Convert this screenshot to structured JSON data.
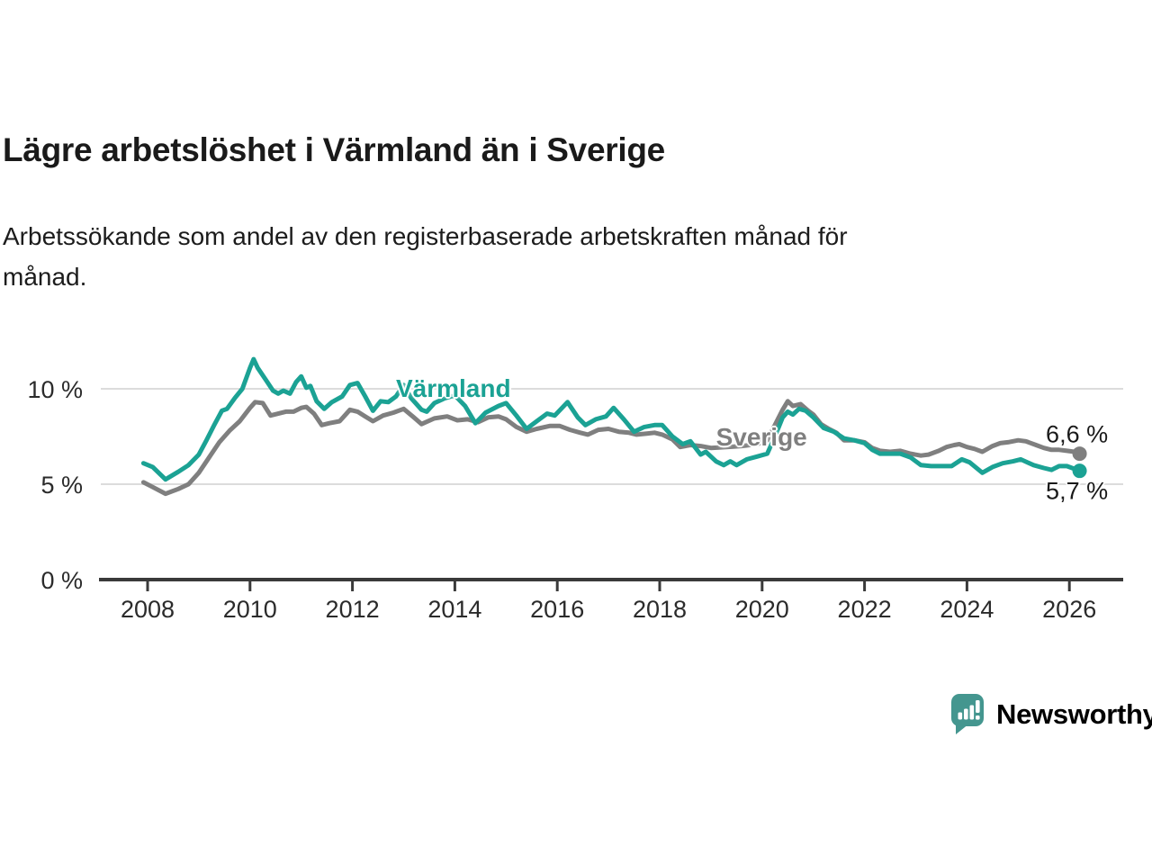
{
  "header": {
    "title": "Lägre arbetslöshet i Värmland än i Sverige",
    "subtitle_lines": [
      "Arbetssökande som andel av den registerbaserade arbetskraften månad för",
      "månad."
    ]
  },
  "branding": {
    "wordmark": "Newsworthy",
    "icon": "bar-chart-pin-icon",
    "color": "#44968f"
  },
  "chart_data": {
    "type": "line",
    "title": "Lägre arbetslöshet i Värmland än i Sverige",
    "subtitle": "Arbetssökande som andel av den registerbaserade arbetskraften månad för månad.",
    "unit": "percent",
    "grid": true,
    "x_axis": {
      "range": [
        2007.9,
        2027.0
      ],
      "ticks": [
        {
          "value": 2008,
          "label": "2008"
        },
        {
          "value": 2010,
          "label": "2010"
        },
        {
          "value": 2012,
          "label": "2012"
        },
        {
          "value": 2014,
          "label": "2014"
        },
        {
          "value": 2016,
          "label": "2016"
        },
        {
          "value": 2018,
          "label": "2018"
        },
        {
          "value": 2020,
          "label": "2020"
        },
        {
          "value": 2022,
          "label": "2022"
        },
        {
          "value": 2024,
          "label": "2024"
        },
        {
          "value": 2026,
          "label": "2026"
        }
      ]
    },
    "y_axis": {
      "range": [
        0,
        12.5
      ],
      "gridline_values": [
        5,
        10
      ],
      "ticks": [
        {
          "value": 0,
          "label": "0 %"
        },
        {
          "value": 5,
          "label": "5 %"
        },
        {
          "value": 10,
          "label": "10 %"
        }
      ]
    },
    "colors": {
      "axis": "#3a3a3a",
      "gridline": "#dcdcdc"
    },
    "series": [
      {
        "name": "Sverige",
        "slug": "sverige",
        "color": "#7f7f7f",
        "value_label": "6,6 %",
        "end_value": 6.6,
        "value_label_side": "above",
        "name_label": {
          "x": 2019.1,
          "y": 7.45
        },
        "points": [
          [
            2007.92,
            5.1
          ],
          [
            2008.1,
            4.85
          ],
          [
            2008.35,
            4.5
          ],
          [
            2008.6,
            4.75
          ],
          [
            2008.8,
            5.0
          ],
          [
            2009.0,
            5.6
          ],
          [
            2009.2,
            6.4
          ],
          [
            2009.4,
            7.2
          ],
          [
            2009.6,
            7.8
          ],
          [
            2009.8,
            8.3
          ],
          [
            2010.0,
            9.0
          ],
          [
            2010.1,
            9.3
          ],
          [
            2010.25,
            9.25
          ],
          [
            2010.4,
            8.6
          ],
          [
            2010.55,
            8.7
          ],
          [
            2010.7,
            8.8
          ],
          [
            2010.85,
            8.8
          ],
          [
            2011.0,
            9.0
          ],
          [
            2011.1,
            9.05
          ],
          [
            2011.25,
            8.7
          ],
          [
            2011.4,
            8.1
          ],
          [
            2011.55,
            8.2
          ],
          [
            2011.75,
            8.3
          ],
          [
            2011.95,
            8.9
          ],
          [
            2012.1,
            8.8
          ],
          [
            2012.25,
            8.55
          ],
          [
            2012.4,
            8.3
          ],
          [
            2012.6,
            8.6
          ],
          [
            2012.8,
            8.75
          ],
          [
            2013.0,
            8.95
          ],
          [
            2013.2,
            8.5
          ],
          [
            2013.35,
            8.15
          ],
          [
            2013.6,
            8.45
          ],
          [
            2013.85,
            8.55
          ],
          [
            2014.05,
            8.35
          ],
          [
            2014.25,
            8.4
          ],
          [
            2014.45,
            8.25
          ],
          [
            2014.65,
            8.5
          ],
          [
            2014.85,
            8.55
          ],
          [
            2015.0,
            8.4
          ],
          [
            2015.2,
            8.0
          ],
          [
            2015.4,
            7.75
          ],
          [
            2015.6,
            7.9
          ],
          [
            2015.85,
            8.05
          ],
          [
            2016.05,
            8.05
          ],
          [
            2016.25,
            7.85
          ],
          [
            2016.45,
            7.7
          ],
          [
            2016.6,
            7.6
          ],
          [
            2016.8,
            7.85
          ],
          [
            2017.0,
            7.9
          ],
          [
            2017.2,
            7.75
          ],
          [
            2017.4,
            7.7
          ],
          [
            2017.55,
            7.6
          ],
          [
            2017.75,
            7.65
          ],
          [
            2017.9,
            7.7
          ],
          [
            2018.05,
            7.6
          ],
          [
            2018.25,
            7.35
          ],
          [
            2018.4,
            6.95
          ],
          [
            2018.6,
            7.05
          ],
          [
            2018.8,
            7.0
          ],
          [
            2019.0,
            6.9
          ],
          [
            2019.3,
            6.95
          ],
          [
            2019.6,
            7.0
          ],
          [
            2019.9,
            7.1
          ],
          [
            2020.1,
            7.3
          ],
          [
            2020.25,
            8.1
          ],
          [
            2020.4,
            8.9
          ],
          [
            2020.5,
            9.35
          ],
          [
            2020.6,
            9.1
          ],
          [
            2020.75,
            9.2
          ],
          [
            2020.9,
            8.85
          ],
          [
            2021.0,
            8.65
          ],
          [
            2021.15,
            8.15
          ],
          [
            2021.3,
            7.9
          ],
          [
            2021.45,
            7.7
          ],
          [
            2021.6,
            7.3
          ],
          [
            2021.8,
            7.3
          ],
          [
            2022.0,
            7.2
          ],
          [
            2022.15,
            6.9
          ],
          [
            2022.3,
            6.75
          ],
          [
            2022.5,
            6.7
          ],
          [
            2022.7,
            6.75
          ],
          [
            2022.9,
            6.6
          ],
          [
            2023.1,
            6.5
          ],
          [
            2023.25,
            6.55
          ],
          [
            2023.45,
            6.75
          ],
          [
            2023.6,
            6.95
          ],
          [
            2023.75,
            7.05
          ],
          [
            2023.85,
            7.1
          ],
          [
            2024.0,
            6.95
          ],
          [
            2024.15,
            6.85
          ],
          [
            2024.3,
            6.7
          ],
          [
            2024.5,
            7.0
          ],
          [
            2024.65,
            7.15
          ],
          [
            2024.8,
            7.2
          ],
          [
            2025.0,
            7.3
          ],
          [
            2025.15,
            7.25
          ],
          [
            2025.35,
            7.05
          ],
          [
            2025.5,
            6.9
          ],
          [
            2025.65,
            6.8
          ],
          [
            2025.8,
            6.8
          ],
          [
            2025.95,
            6.75
          ],
          [
            2026.1,
            6.7
          ],
          [
            2026.2,
            6.6
          ]
        ]
      },
      {
        "name": "Värmland",
        "slug": "varmland",
        "color": "#1ba294",
        "value_label": "5,7 %",
        "end_value": 5.7,
        "value_label_side": "below",
        "name_label": {
          "x": 2012.85,
          "y": 10.0
        },
        "points": [
          [
            2007.92,
            6.1
          ],
          [
            2008.1,
            5.9
          ],
          [
            2008.35,
            5.25
          ],
          [
            2008.6,
            5.65
          ],
          [
            2008.8,
            6.0
          ],
          [
            2009.0,
            6.55
          ],
          [
            2009.15,
            7.3
          ],
          [
            2009.3,
            8.1
          ],
          [
            2009.45,
            8.85
          ],
          [
            2009.55,
            8.95
          ],
          [
            2009.7,
            9.5
          ],
          [
            2009.85,
            10.0
          ],
          [
            2010.0,
            11.1
          ],
          [
            2010.07,
            11.55
          ],
          [
            2010.15,
            11.1
          ],
          [
            2010.3,
            10.5
          ],
          [
            2010.45,
            9.9
          ],
          [
            2010.55,
            9.75
          ],
          [
            2010.65,
            9.9
          ],
          [
            2010.78,
            9.75
          ],
          [
            2010.9,
            10.35
          ],
          [
            2011.0,
            10.65
          ],
          [
            2011.1,
            10.05
          ],
          [
            2011.18,
            10.15
          ],
          [
            2011.3,
            9.35
          ],
          [
            2011.45,
            8.95
          ],
          [
            2011.6,
            9.3
          ],
          [
            2011.8,
            9.6
          ],
          [
            2011.95,
            10.2
          ],
          [
            2012.1,
            10.3
          ],
          [
            2012.25,
            9.6
          ],
          [
            2012.4,
            8.85
          ],
          [
            2012.55,
            9.35
          ],
          [
            2012.7,
            9.3
          ],
          [
            2012.85,
            9.6
          ],
          [
            2013.0,
            10.2
          ],
          [
            2013.15,
            9.5
          ],
          [
            2013.35,
            8.9
          ],
          [
            2013.45,
            8.8
          ],
          [
            2013.6,
            9.25
          ],
          [
            2013.8,
            9.5
          ],
          [
            2014.0,
            9.65
          ],
          [
            2014.2,
            9.1
          ],
          [
            2014.4,
            8.2
          ],
          [
            2014.6,
            8.75
          ],
          [
            2014.85,
            9.1
          ],
          [
            2015.0,
            9.25
          ],
          [
            2015.2,
            8.6
          ],
          [
            2015.4,
            7.9
          ],
          [
            2015.6,
            8.3
          ],
          [
            2015.8,
            8.7
          ],
          [
            2015.95,
            8.6
          ],
          [
            2016.2,
            9.3
          ],
          [
            2016.4,
            8.5
          ],
          [
            2016.55,
            8.1
          ],
          [
            2016.75,
            8.4
          ],
          [
            2016.95,
            8.55
          ],
          [
            2017.1,
            9.0
          ],
          [
            2017.3,
            8.4
          ],
          [
            2017.5,
            7.75
          ],
          [
            2017.7,
            8.0
          ],
          [
            2017.9,
            8.1
          ],
          [
            2018.05,
            8.1
          ],
          [
            2018.25,
            7.5
          ],
          [
            2018.45,
            7.1
          ],
          [
            2018.6,
            7.25
          ],
          [
            2018.8,
            6.55
          ],
          [
            2018.9,
            6.7
          ],
          [
            2019.1,
            6.2
          ],
          [
            2019.25,
            6.0
          ],
          [
            2019.38,
            6.2
          ],
          [
            2019.5,
            6.0
          ],
          [
            2019.7,
            6.3
          ],
          [
            2019.9,
            6.45
          ],
          [
            2020.1,
            6.6
          ],
          [
            2020.25,
            7.5
          ],
          [
            2020.4,
            8.5
          ],
          [
            2020.5,
            8.8
          ],
          [
            2020.6,
            8.65
          ],
          [
            2020.72,
            8.95
          ],
          [
            2020.85,
            8.85
          ],
          [
            2021.0,
            8.5
          ],
          [
            2021.2,
            7.95
          ],
          [
            2021.4,
            7.75
          ],
          [
            2021.6,
            7.4
          ],
          [
            2021.8,
            7.3
          ],
          [
            2022.0,
            7.15
          ],
          [
            2022.15,
            6.8
          ],
          [
            2022.3,
            6.6
          ],
          [
            2022.5,
            6.6
          ],
          [
            2022.7,
            6.6
          ],
          [
            2022.9,
            6.4
          ],
          [
            2023.1,
            6.0
          ],
          [
            2023.3,
            5.95
          ],
          [
            2023.5,
            5.95
          ],
          [
            2023.7,
            5.95
          ],
          [
            2023.9,
            6.3
          ],
          [
            2024.05,
            6.15
          ],
          [
            2024.3,
            5.6
          ],
          [
            2024.5,
            5.9
          ],
          [
            2024.7,
            6.1
          ],
          [
            2024.9,
            6.2
          ],
          [
            2025.05,
            6.3
          ],
          [
            2025.3,
            6.0
          ],
          [
            2025.5,
            5.85
          ],
          [
            2025.65,
            5.75
          ],
          [
            2025.8,
            5.95
          ],
          [
            2025.95,
            5.95
          ],
          [
            2026.1,
            5.8
          ],
          [
            2026.2,
            5.7
          ]
        ]
      }
    ]
  }
}
